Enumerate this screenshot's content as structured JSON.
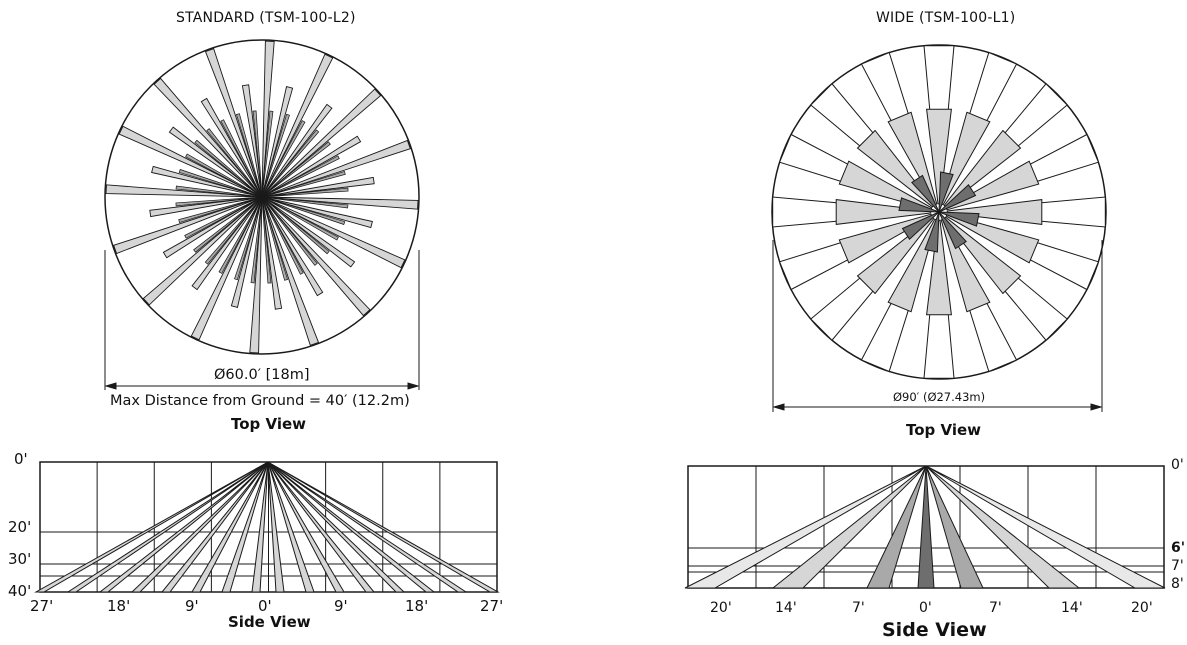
{
  "standard": {
    "title": "STANDARD (TSM-100-L2)",
    "top_view": {
      "diameter_label": "Ø60.0′ [18m]",
      "max_distance_label": "Max Distance from Ground = 40′ (12.2m)",
      "caption": "Top View"
    },
    "side_view": {
      "caption": "Side View",
      "y_labels": [
        "0'",
        "20'",
        "30'",
        "40'"
      ],
      "x_labels": [
        "27'",
        "18'",
        "9'",
        "0'",
        "9'",
        "18'",
        "27'"
      ]
    }
  },
  "wide": {
    "title": "WIDE (TSM-100-L1)",
    "top_view": {
      "diameter_label": "Ø90′ (Ø27.43m)",
      "caption": "Top View"
    },
    "side_view": {
      "caption": "Side View",
      "y_labels": [
        "0'",
        "6'",
        "7'",
        "8'"
      ],
      "x_labels": [
        "20'",
        "14'",
        "7'",
        "0'",
        "7'",
        "14'",
        "20'"
      ]
    }
  },
  "colors": {
    "line": "#1a1a1a",
    "zone_light": "#d6d6d6",
    "zone_mid": "#a9a9a9",
    "zone_dark": "#6e6e6e"
  }
}
